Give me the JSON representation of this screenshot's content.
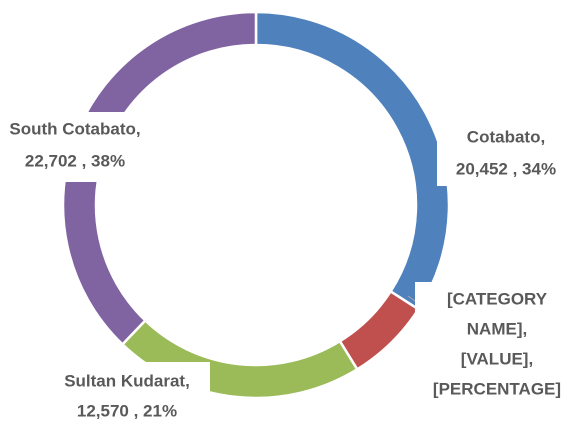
{
  "chart_data": {
    "type": "donut",
    "categories": [
      "Cotabato",
      null,
      "Sultan Kudarat",
      "South Cotabato"
    ],
    "values": [
      20452,
      4276,
      12570,
      22702
    ],
    "colors": [
      "#4f81bd",
      "#c0504d",
      "#9bbb59",
      "#8064a2"
    ],
    "labels": [
      [
        "Cotabato,",
        "20,452 , 34%"
      ],
      [
        "[CATEGORY",
        "NAME],",
        "[VALUE],",
        "[PERCENTAGE]"
      ],
      [
        "Sultan Kudarat,",
        "12,570 , 21%"
      ],
      [
        "South Cotabato,",
        "22,702 , 38%"
      ]
    ]
  }
}
